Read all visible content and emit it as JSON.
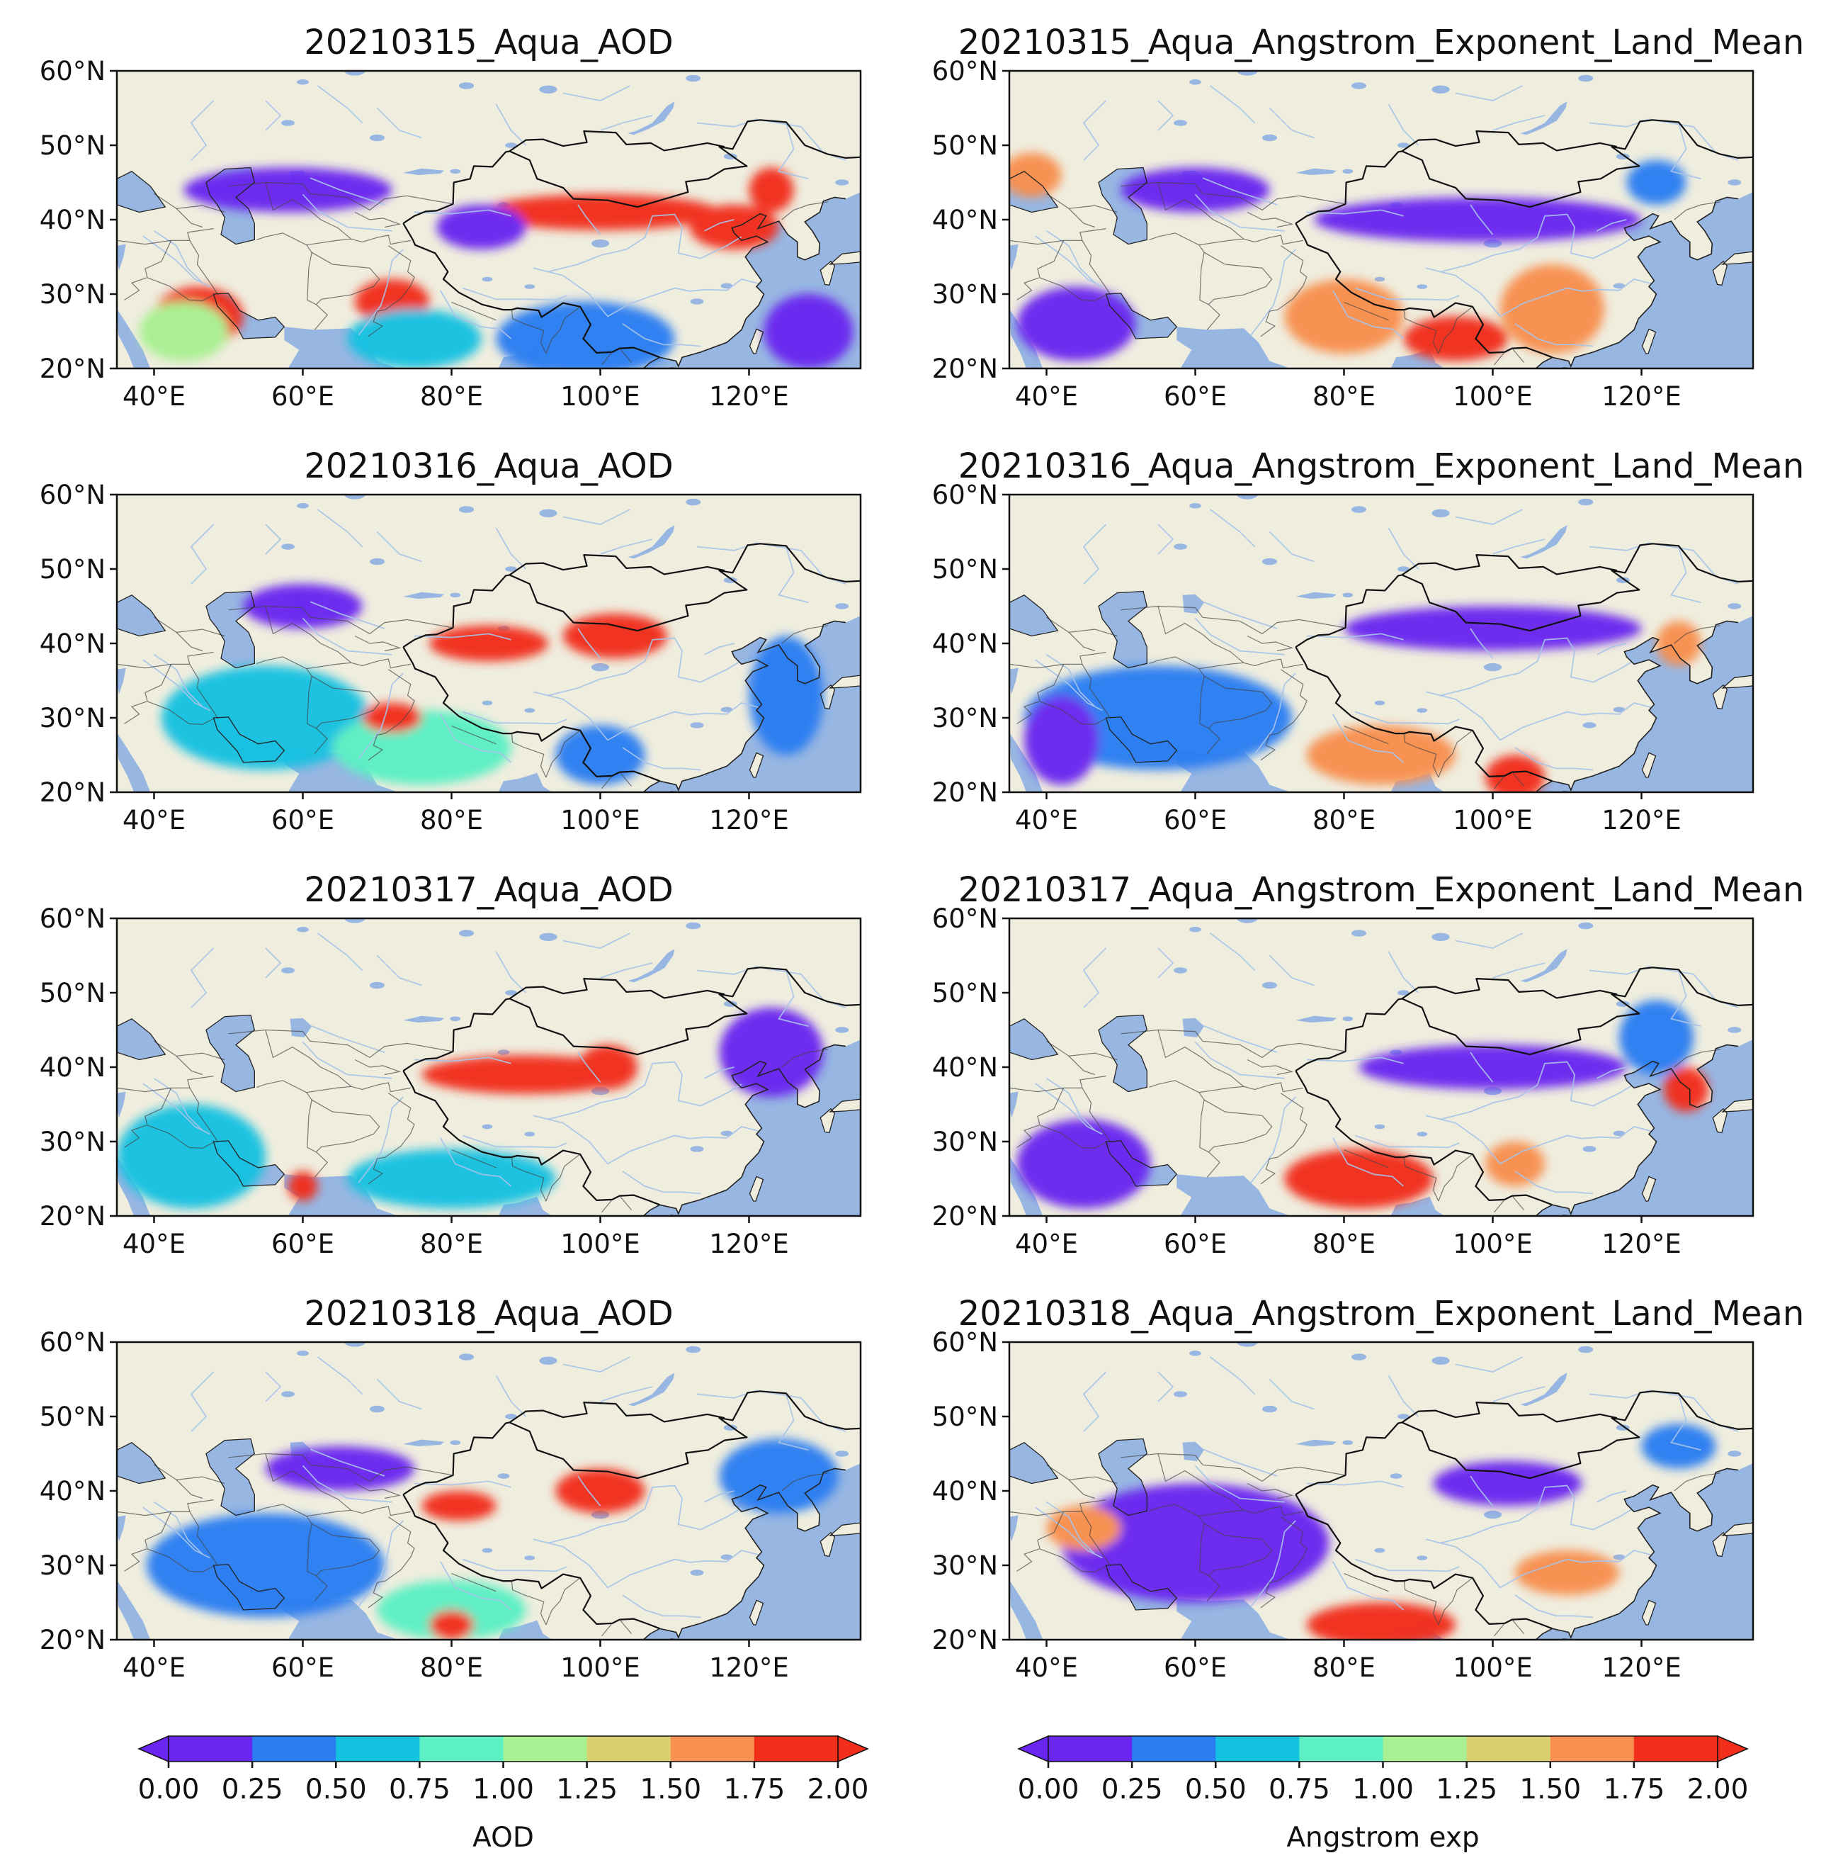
{
  "panels": [
    {
      "id": "aod-0315",
      "title": "20210315_Aqua_AOD",
      "variable": "AOD",
      "date": "20210315",
      "blobs": [
        {
          "lon": 100,
          "lat": 41,
          "rx": 16,
          "ry": 2.4,
          "value": 1.9
        },
        {
          "lon": 84,
          "lat": 39,
          "rx": 6,
          "ry": 3,
          "value": 0.2
        },
        {
          "lon": 118,
          "lat": 39,
          "rx": 6,
          "ry": 3,
          "value": 1.85
        },
        {
          "lon": 123,
          "lat": 44,
          "rx": 3,
          "ry": 3,
          "value": 1.9
        },
        {
          "lon": 46,
          "lat": 27,
          "rx": 6,
          "ry": 4,
          "value": 1.95
        },
        {
          "lon": 44,
          "lat": 25,
          "rx": 6,
          "ry": 4,
          "value": 1.2
        },
        {
          "lon": 72,
          "lat": 29,
          "rx": 5,
          "ry": 3,
          "value": 1.9
        },
        {
          "lon": 75,
          "lat": 24,
          "rx": 9,
          "ry": 4,
          "value": 0.6
        },
        {
          "lon": 98,
          "lat": 24,
          "rx": 12,
          "ry": 5,
          "value": 0.4
        },
        {
          "lon": 58,
          "lat": 44,
          "rx": 14,
          "ry": 3,
          "value": 0.15
        },
        {
          "lon": 128,
          "lat": 25,
          "rx": 6,
          "ry": 5,
          "value": 0.2
        }
      ]
    },
    {
      "id": "ae-0315",
      "title": "20210315_Aqua_Angstrom_Exponent_Land_Mean",
      "variable": "Angstrom_Exponent_Land_Mean",
      "date": "20210315",
      "blobs": [
        {
          "lon": 98,
          "lat": 40,
          "rx": 22,
          "ry": 3,
          "value": 0.15
        },
        {
          "lon": 44,
          "lat": 26,
          "rx": 8,
          "ry": 5,
          "value": 0.1
        },
        {
          "lon": 80,
          "lat": 27,
          "rx": 8,
          "ry": 5,
          "value": 1.6
        },
        {
          "lon": 95,
          "lat": 24,
          "rx": 7,
          "ry": 3,
          "value": 1.85
        },
        {
          "lon": 108,
          "lat": 28,
          "rx": 7,
          "ry": 6,
          "value": 1.6
        },
        {
          "lon": 60,
          "lat": 44,
          "rx": 10,
          "ry": 3,
          "value": 0.2
        },
        {
          "lon": 122,
          "lat": 45,
          "rx": 4,
          "ry": 3,
          "value": 0.3
        },
        {
          "lon": 38,
          "lat": 46,
          "rx": 4,
          "ry": 3,
          "value": 1.7
        }
      ]
    },
    {
      "id": "aod-0316",
      "title": "20210316_Aqua_AOD",
      "variable": "AOD",
      "date": "20210316",
      "blobs": [
        {
          "lon": 85,
          "lat": 40,
          "rx": 8,
          "ry": 2.4,
          "value": 1.95
        },
        {
          "lon": 102,
          "lat": 41,
          "rx": 7,
          "ry": 3,
          "value": 1.95
        },
        {
          "lon": 55,
          "lat": 30,
          "rx": 14,
          "ry": 7,
          "value": 0.55
        },
        {
          "lon": 76,
          "lat": 26,
          "rx": 12,
          "ry": 5,
          "value": 0.8
        },
        {
          "lon": 72,
          "lat": 30,
          "rx": 4,
          "ry": 2,
          "value": 1.8
        },
        {
          "lon": 60,
          "lat": 45,
          "rx": 8,
          "ry": 3,
          "value": 0.2
        },
        {
          "lon": 100,
          "lat": 25,
          "rx": 6,
          "ry": 4,
          "value": 0.3
        },
        {
          "lon": 125,
          "lat": 33,
          "rx": 5,
          "ry": 8,
          "value": 0.3
        }
      ]
    },
    {
      "id": "ae-0316",
      "title": "20210316_Aqua_Angstrom_Exponent_Land_Mean",
      "variable": "Angstrom_Exponent_Land_Mean",
      "date": "20210316",
      "blobs": [
        {
          "lon": 100,
          "lat": 42,
          "rx": 20,
          "ry": 3,
          "value": 0.15
        },
        {
          "lon": 55,
          "lat": 30,
          "rx": 18,
          "ry": 7,
          "value": 0.25
        },
        {
          "lon": 85,
          "lat": 25,
          "rx": 10,
          "ry": 4,
          "value": 1.7
        },
        {
          "lon": 103,
          "lat": 22,
          "rx": 4,
          "ry": 3,
          "value": 1.9
        },
        {
          "lon": 125,
          "lat": 40,
          "rx": 3,
          "ry": 3,
          "value": 1.5
        },
        {
          "lon": 42,
          "lat": 27,
          "rx": 5,
          "ry": 6,
          "value": 0.05
        }
      ]
    },
    {
      "id": "aod-0317",
      "title": "20210317_Aqua_AOD",
      "variable": "AOD",
      "date": "20210317",
      "blobs": [
        {
          "lon": 90,
          "lat": 39,
          "rx": 14,
          "ry": 2.6,
          "value": 1.95
        },
        {
          "lon": 101,
          "lat": 40,
          "rx": 4,
          "ry": 3,
          "value": 2.0
        },
        {
          "lon": 45,
          "lat": 28,
          "rx": 10,
          "ry": 7,
          "value": 0.5
        },
        {
          "lon": 80,
          "lat": 25,
          "rx": 14,
          "ry": 4,
          "value": 0.7
        },
        {
          "lon": 123,
          "lat": 42,
          "rx": 7,
          "ry": 6,
          "value": 0.2
        },
        {
          "lon": 60,
          "lat": 24,
          "rx": 2,
          "ry": 2,
          "value": 1.9
        }
      ]
    },
    {
      "id": "ae-0317",
      "title": "20210317_Aqua_Angstrom_Exponent_Land_Mean",
      "variable": "Angstrom_Exponent_Land_Mean",
      "date": "20210317",
      "blobs": [
        {
          "lon": 100,
          "lat": 40,
          "rx": 18,
          "ry": 3,
          "value": 0.15
        },
        {
          "lon": 45,
          "lat": 27,
          "rx": 9,
          "ry": 6,
          "value": 0.15
        },
        {
          "lon": 82,
          "lat": 25,
          "rx": 10,
          "ry": 4,
          "value": 1.75
        },
        {
          "lon": 103,
          "lat": 27,
          "rx": 4,
          "ry": 3,
          "value": 1.6
        },
        {
          "lon": 122,
          "lat": 44,
          "rx": 5,
          "ry": 5,
          "value": 0.3
        },
        {
          "lon": 126,
          "lat": 37,
          "rx": 3,
          "ry": 3,
          "value": 1.8
        }
      ]
    },
    {
      "id": "aod-0318",
      "title": "20210318_Aqua_AOD",
      "variable": "AOD",
      "date": "20210318",
      "blobs": [
        {
          "lon": 81,
          "lat": 38,
          "rx": 5,
          "ry": 2,
          "value": 1.95
        },
        {
          "lon": 100,
          "lat": 40,
          "rx": 6,
          "ry": 3,
          "value": 1.8
        },
        {
          "lon": 55,
          "lat": 30,
          "rx": 16,
          "ry": 7,
          "value": 0.35
        },
        {
          "lon": 80,
          "lat": 24,
          "rx": 10,
          "ry": 4,
          "value": 0.9
        },
        {
          "lon": 80,
          "lat": 22,
          "rx": 3,
          "ry": 2,
          "value": 1.9
        },
        {
          "lon": 124,
          "lat": 42,
          "rx": 8,
          "ry": 5,
          "value": 0.3
        },
        {
          "lon": 65,
          "lat": 43,
          "rx": 10,
          "ry": 3,
          "value": 0.2
        }
      ]
    },
    {
      "id": "ae-0318",
      "title": "20210318_Aqua_Angstrom_Exponent_Land_Mean",
      "variable": "Angstrom_Exponent_Land_Mean",
      "date": "20210318",
      "blobs": [
        {
          "lon": 102,
          "lat": 41,
          "rx": 10,
          "ry": 3,
          "value": 0.15
        },
        {
          "lon": 60,
          "lat": 33,
          "rx": 18,
          "ry": 8,
          "value": 0.2
        },
        {
          "lon": 85,
          "lat": 22,
          "rx": 10,
          "ry": 3,
          "value": 1.8
        },
        {
          "lon": 110,
          "lat": 29,
          "rx": 7,
          "ry": 3,
          "value": 1.55
        },
        {
          "lon": 45,
          "lat": 35,
          "rx": 5,
          "ry": 3,
          "value": 1.5
        },
        {
          "lon": 125,
          "lat": 46,
          "rx": 5,
          "ry": 3,
          "value": 0.3
        }
      ]
    }
  ],
  "axes": {
    "x_ticks": [
      40,
      60,
      80,
      100,
      120
    ],
    "x_tick_labels": [
      "40°E",
      "60°E",
      "80°E",
      "100°E",
      "120°E"
    ],
    "y_ticks": [
      60,
      50,
      40,
      30,
      20
    ],
    "y_tick_labels": [
      "60°N",
      "50°N",
      "40°N",
      "30°N",
      "20°N"
    ],
    "lon_range": [
      35,
      135
    ],
    "lat_range": [
      20,
      60
    ]
  },
  "colorbars": [
    {
      "id": "aod",
      "label": "AOD",
      "ticks": [
        "0.00",
        "0.25",
        "0.50",
        "0.75",
        "1.00",
        "1.25",
        "1.50",
        "1.75",
        "2.00"
      ],
      "extend": "both"
    },
    {
      "id": "angstrom",
      "label": "Angstrom exp",
      "ticks": [
        "0.00",
        "0.25",
        "0.50",
        "0.75",
        "1.00",
        "1.25",
        "1.50",
        "1.75",
        "2.00"
      ],
      "extend": "both"
    }
  ],
  "colors": {
    "land": "#efedde",
    "ocean": "#97b6e2",
    "lake": "#97b6e2",
    "border": "#111111",
    "river": "#a7c3e8",
    "colormap": [
      "#6a25f0",
      "#2b7ef2",
      "#13c1e1",
      "#5cf0c4",
      "#a9f092",
      "#d9d070",
      "#f8904f",
      "#f22f1b"
    ],
    "under": "#6a25f0",
    "over": "#f22f1b"
  }
}
